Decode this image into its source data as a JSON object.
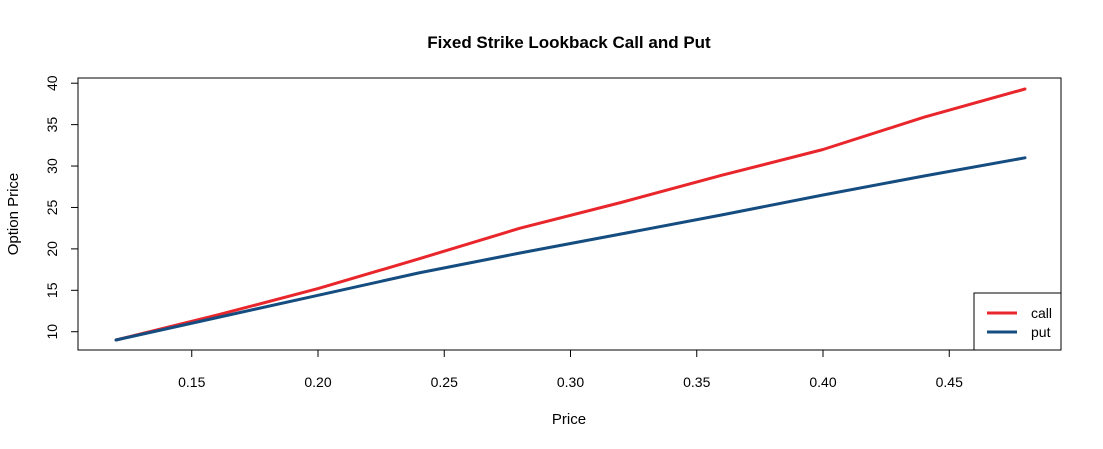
{
  "chart_data": {
    "type": "line",
    "title": "Fixed Strike Lookback Call and Put",
    "xlabel": "Price",
    "ylabel": "Option Price",
    "xlim": [
      0.12,
      0.48
    ],
    "ylim": [
      9,
      39.3
    ],
    "x_ticks": [
      "0.15",
      "0.20",
      "0.25",
      "0.30",
      "0.35",
      "0.40",
      "0.45"
    ],
    "y_ticks": [
      "10",
      "15",
      "20",
      "25",
      "30",
      "35",
      "40"
    ],
    "grid": false,
    "legend_position": "bottom-right",
    "series": [
      {
        "name": "call",
        "color": "#e8262b",
        "x": [
          0.12,
          0.16,
          0.2,
          0.24,
          0.28,
          0.32,
          0.36,
          0.4,
          0.44,
          0.48
        ],
        "y": [
          9.0,
          12.0,
          15.2,
          18.8,
          22.5,
          25.6,
          28.9,
          32.0,
          35.9,
          39.3
        ]
      },
      {
        "name": "put",
        "color": "#154d80",
        "x": [
          0.12,
          0.16,
          0.2,
          0.24,
          0.28,
          0.32,
          0.36,
          0.4,
          0.44,
          0.48
        ],
        "y": [
          9.0,
          11.7,
          14.4,
          17.1,
          19.5,
          21.8,
          24.1,
          26.5,
          28.8,
          31.0
        ]
      }
    ]
  }
}
